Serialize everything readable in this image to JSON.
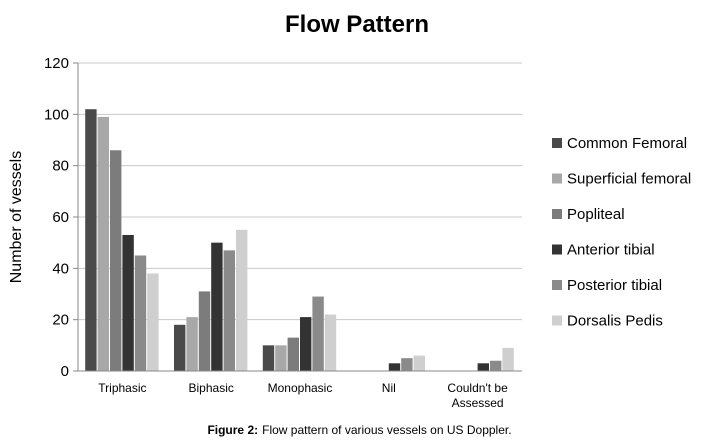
{
  "caption": {
    "label": "Figure 2:",
    "text": "Flow pattern of various vessels on US Doppler."
  },
  "chart_data": {
    "type": "bar",
    "title": "Flow Pattern",
    "xlabel": "",
    "ylabel": "Number of vessels",
    "ylim": [
      0,
      120
    ],
    "yticks": [
      0,
      20,
      40,
      60,
      80,
      100,
      120
    ],
    "grid": true,
    "legend_position": "right",
    "categories": [
      "Triphasic",
      "Biphasic",
      "Monophasic",
      "Nil",
      "Couldn't be Assessed"
    ],
    "category_lines": [
      [
        "Triphasic"
      ],
      [
        "Biphasic"
      ],
      [
        "Monophasic"
      ],
      [
        "Nil"
      ],
      [
        "Couldn't be",
        "Assessed"
      ]
    ],
    "series": [
      {
        "name": "Common Femoral",
        "color": "#4a4a4a",
        "values": [
          102,
          18,
          10,
          0,
          0
        ]
      },
      {
        "name": "Superficial femoral",
        "color": "#a8a8a8",
        "values": [
          99,
          21,
          10,
          0,
          0
        ]
      },
      {
        "name": "Popliteal",
        "color": "#7c7c7c",
        "values": [
          86,
          31,
          13,
          0,
          0
        ]
      },
      {
        "name": "Anterior tibial",
        "color": "#333333",
        "values": [
          53,
          50,
          21,
          3,
          3
        ]
      },
      {
        "name": "Posterior tibial",
        "color": "#8a8a8a",
        "values": [
          45,
          47,
          29,
          5,
          4
        ]
      },
      {
        "name": "Dorsalis Pedis",
        "color": "#cfcfcf",
        "values": [
          38,
          55,
          22,
          6,
          9
        ]
      }
    ]
  }
}
